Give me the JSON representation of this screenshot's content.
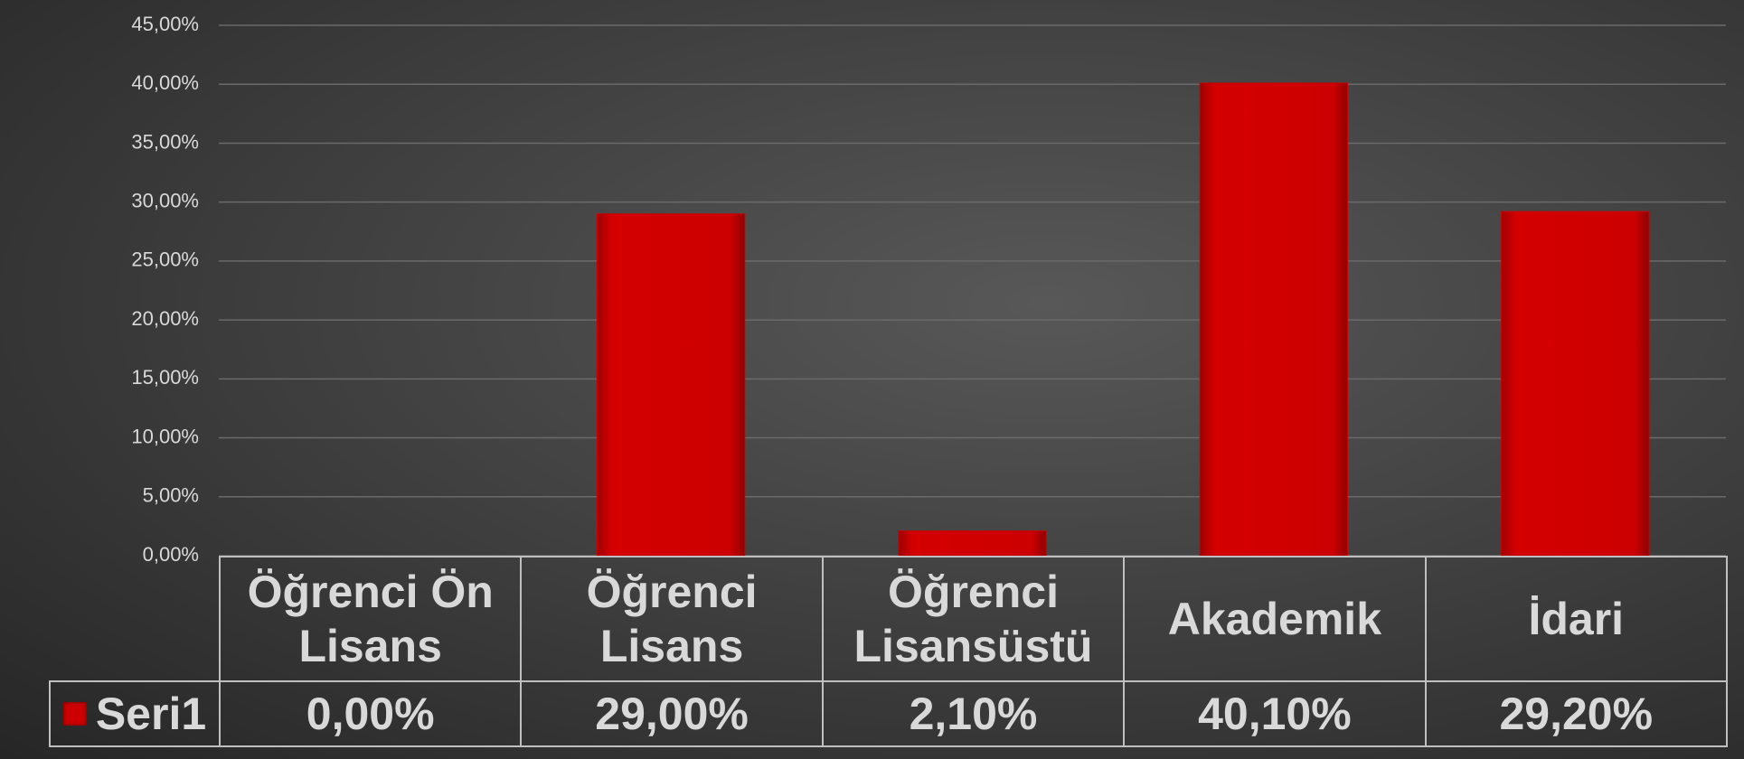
{
  "chart_data": {
    "type": "bar",
    "categories": [
      "Öğrenci Ön Lisans",
      "Öğrenci Lisans",
      "Öğrenci Lisansüstü",
      "Akademik",
      "İdari"
    ],
    "series": [
      {
        "name": "Seri1",
        "color": "#cc0000",
        "values": [
          0,
          29,
          2.1,
          40.1,
          29.2
        ],
        "value_labels": [
          "0,00%",
          "29,00%",
          "2,10%",
          "40,10%",
          "29,20%"
        ]
      }
    ],
    "ylim": [
      0,
      45
    ],
    "yticks": [
      {
        "value": 0,
        "label": "0,00%"
      },
      {
        "value": 5,
        "label": "5,00%"
      },
      {
        "value": 10,
        "label": "10,00%"
      },
      {
        "value": 15,
        "label": "15,00%"
      },
      {
        "value": 20,
        "label": "20,00%"
      },
      {
        "value": 25,
        "label": "25,00%"
      },
      {
        "value": 30,
        "label": "30,00%"
      },
      {
        "value": 35,
        "label": "35,00%"
      },
      {
        "value": 40,
        "label": "40,00%"
      },
      {
        "value": 45,
        "label": "45,00%"
      }
    ],
    "grid": true,
    "data_table": true
  }
}
